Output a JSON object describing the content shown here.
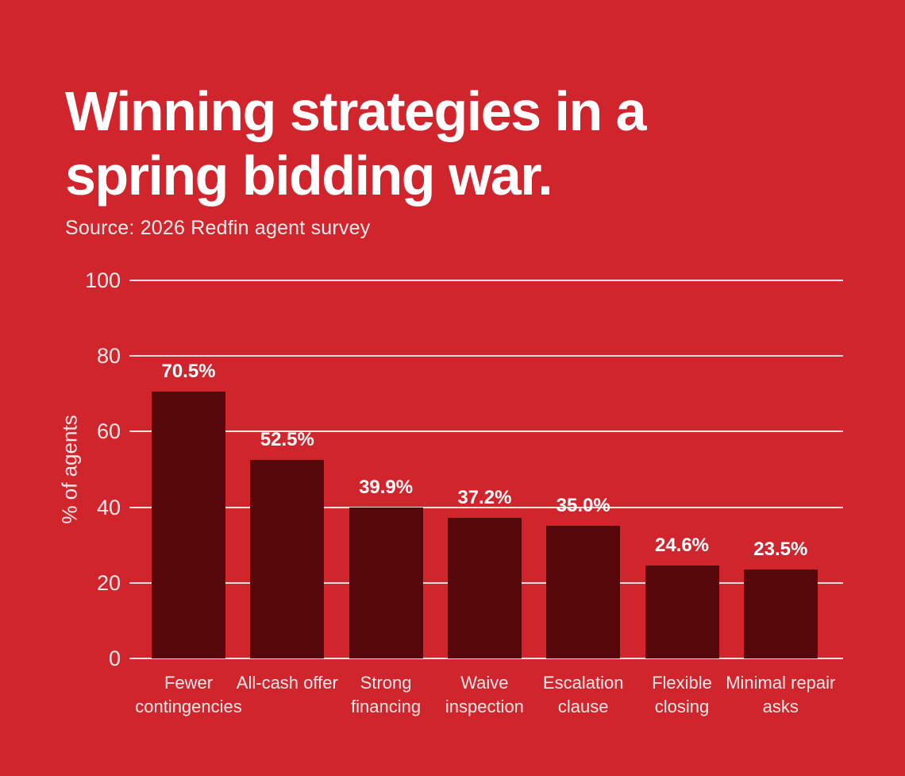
{
  "page": {
    "background_color": "#D1252D"
  },
  "header": {
    "title_line1": "Winning strategies in a",
    "title_line2": "spring bidding war.",
    "source": "Source: 2026 Redfin agent survey",
    "title_color": "#FFFFFF"
  },
  "chart_data": {
    "type": "bar",
    "title": "Winning strategies in a spring bidding war.",
    "subtitle": "Source: 2026 Redfin agent survey",
    "categories": [
      "Fewer contingencies",
      "All-cash offer",
      "Strong financing",
      "Waive inspection",
      "Escalation clause",
      "Flexible closing",
      "Minimal repair asks"
    ],
    "values": [
      70.5,
      52.5,
      39.9,
      37.2,
      35.0,
      24.6,
      23.5
    ],
    "value_labels": [
      "70.5%",
      "52.5%",
      "39.9%",
      "37.2%",
      "35.0%",
      "24.6%",
      "23.5%"
    ],
    "xlabel": "",
    "ylabel": "% of agents",
    "ylim": [
      0,
      100
    ],
    "yticks": [
      0,
      20,
      40,
      60,
      80,
      100
    ],
    "grid": true,
    "legend": false,
    "layout": {
      "bar_labels_position": "above-bars",
      "gridlines_behind_bars": true
    },
    "colors": {
      "background": "#D1252D",
      "bar": "#560709",
      "gridline": "#F2DEDE",
      "value_label": "#FFFFFF",
      "axis_text": "#F6E8E8"
    }
  }
}
